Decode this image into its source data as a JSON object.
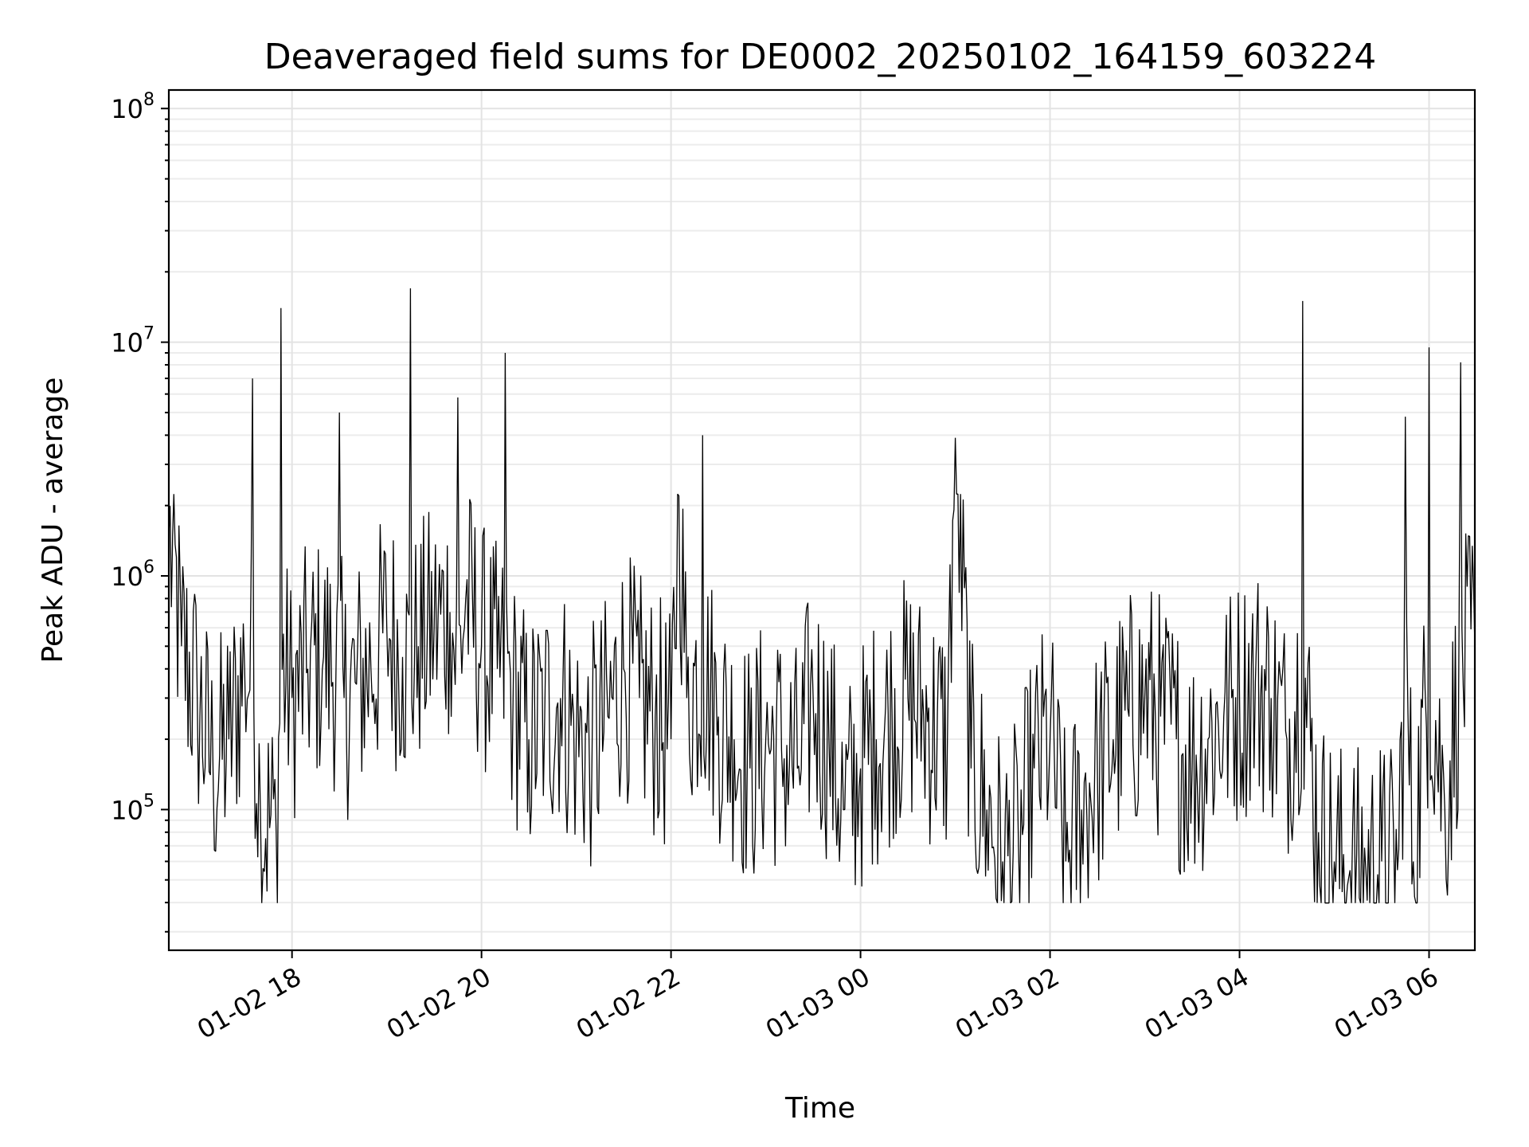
{
  "chart_data": {
    "type": "line",
    "title": "Deaveraged field sums for DE0002_20250102_164159_603224",
    "xlabel": "Time",
    "ylabel": "Peak ADU - average",
    "y_scale": "log",
    "ylim": [
      25000,
      120000000
    ],
    "xlim": [
      "2025-01-02 16:42",
      "2025-01-03 06:29"
    ],
    "grid": true,
    "x_ticks": [
      {
        "time": "2025-01-02 18:00",
        "label": "01-02 18"
      },
      {
        "time": "2025-01-02 20:00",
        "label": "01-02 20"
      },
      {
        "time": "2025-01-02 22:00",
        "label": "01-02 22"
      },
      {
        "time": "2025-01-03 00:00",
        "label": "01-03 00"
      },
      {
        "time": "2025-01-03 02:00",
        "label": "01-03 02"
      },
      {
        "time": "2025-01-03 04:00",
        "label": "01-03 04"
      },
      {
        "time": "2025-01-03 06:00",
        "label": "01-03 06"
      }
    ],
    "y_ticks": [
      {
        "value": 100000,
        "base": "10",
        "exp": "5"
      },
      {
        "value": 1000000,
        "base": "10",
        "exp": "6"
      },
      {
        "value": 10000000,
        "base": "10",
        "exp": "7"
      },
      {
        "value": 100000000,
        "base": "10",
        "exp": "8"
      }
    ],
    "series": [
      {
        "color": "#000000",
        "x": [
          "2025-01-02 16:42",
          "2025-01-02 16:50",
          "2025-01-02 17:00",
          "2025-01-02 17:10",
          "2025-01-02 17:20",
          "2025-01-02 17:30",
          "2025-01-02 17:35",
          "2025-01-02 17:40",
          "2025-01-02 17:50",
          "2025-01-02 17:53",
          "2025-01-02 18:00",
          "2025-01-02 18:10",
          "2025-01-02 18:20",
          "2025-01-02 18:30",
          "2025-01-02 18:33",
          "2025-01-02 18:40",
          "2025-01-02 18:50",
          "2025-01-02 19:00",
          "2025-01-02 19:10",
          "2025-01-02 19:15",
          "2025-01-02 19:20",
          "2025-01-02 19:30",
          "2025-01-02 19:40",
          "2025-01-02 19:45",
          "2025-01-02 19:50",
          "2025-01-02 20:00",
          "2025-01-02 20:10",
          "2025-01-02 20:15",
          "2025-01-02 20:20",
          "2025-01-02 20:30",
          "2025-01-02 20:40",
          "2025-01-02 20:50",
          "2025-01-02 21:00",
          "2025-01-02 21:10",
          "2025-01-02 21:20",
          "2025-01-02 21:30",
          "2025-01-02 21:40",
          "2025-01-02 21:50",
          "2025-01-02 22:00",
          "2025-01-02 22:05",
          "2025-01-02 22:10",
          "2025-01-02 22:20",
          "2025-01-02 22:30",
          "2025-01-02 22:40",
          "2025-01-02 22:50",
          "2025-01-02 23:00",
          "2025-01-02 23:10",
          "2025-01-02 23:20",
          "2025-01-02 23:30",
          "2025-01-02 23:40",
          "2025-01-02 23:50",
          "2025-01-03 00:00",
          "2025-01-03 00:10",
          "2025-01-03 00:20",
          "2025-01-03 00:30",
          "2025-01-03 00:40",
          "2025-01-03 00:55",
          "2025-01-03 01:00",
          "2025-01-03 01:10",
          "2025-01-03 01:20",
          "2025-01-03 01:30",
          "2025-01-03 01:40",
          "2025-01-03 01:50",
          "2025-01-03 02:00",
          "2025-01-03 02:10",
          "2025-01-03 02:20",
          "2025-01-03 02:30",
          "2025-01-03 02:40",
          "2025-01-03 02:50",
          "2025-01-03 03:00",
          "2025-01-03 03:10",
          "2025-01-03 03:20",
          "2025-01-03 03:30",
          "2025-01-03 03:40",
          "2025-01-03 03:50",
          "2025-01-03 04:00",
          "2025-01-03 04:10",
          "2025-01-03 04:20",
          "2025-01-03 04:30",
          "2025-01-03 04:40",
          "2025-01-03 04:50",
          "2025-01-03 05:00",
          "2025-01-03 05:10",
          "2025-01-03 05:20",
          "2025-01-03 05:30",
          "2025-01-03 05:40",
          "2025-01-03 05:45",
          "2025-01-03 05:50",
          "2025-01-03 06:00",
          "2025-01-03 06:10",
          "2025-01-03 06:20",
          "2025-01-03 06:29"
        ],
        "y": [
          1500000,
          500000,
          300000,
          150000,
          200000,
          400000,
          7000000,
          100000,
          80000,
          14000000,
          300000,
          400000,
          450000,
          5000000,
          300000,
          350000,
          400000,
          600000,
          450000,
          17000000,
          500000,
          600000,
          700000,
          5800000,
          800000,
          500000,
          400000,
          9000000,
          300000,
          200000,
          250000,
          300000,
          200000,
          180000,
          250000,
          400000,
          300000,
          250000,
          200000,
          2200000,
          300000,
          4000000,
          250000,
          200000,
          150000,
          200000,
          180000,
          150000,
          300000,
          200000,
          100000,
          150000,
          200000,
          250000,
          300000,
          250000,
          200000,
          3900000,
          150000,
          100000,
          60000,
          70000,
          150000,
          200000,
          60000,
          100000,
          150000,
          200000,
          250000,
          300000,
          250000,
          200000,
          150000,
          200000,
          250000,
          300000,
          350000,
          300000,
          200000,
          15000000,
          80000,
          60000,
          55000,
          55000,
          60000,
          55000,
          4800000,
          60000,
          9500000,
          100000,
          8200000,
          500000
        ]
      }
    ]
  }
}
